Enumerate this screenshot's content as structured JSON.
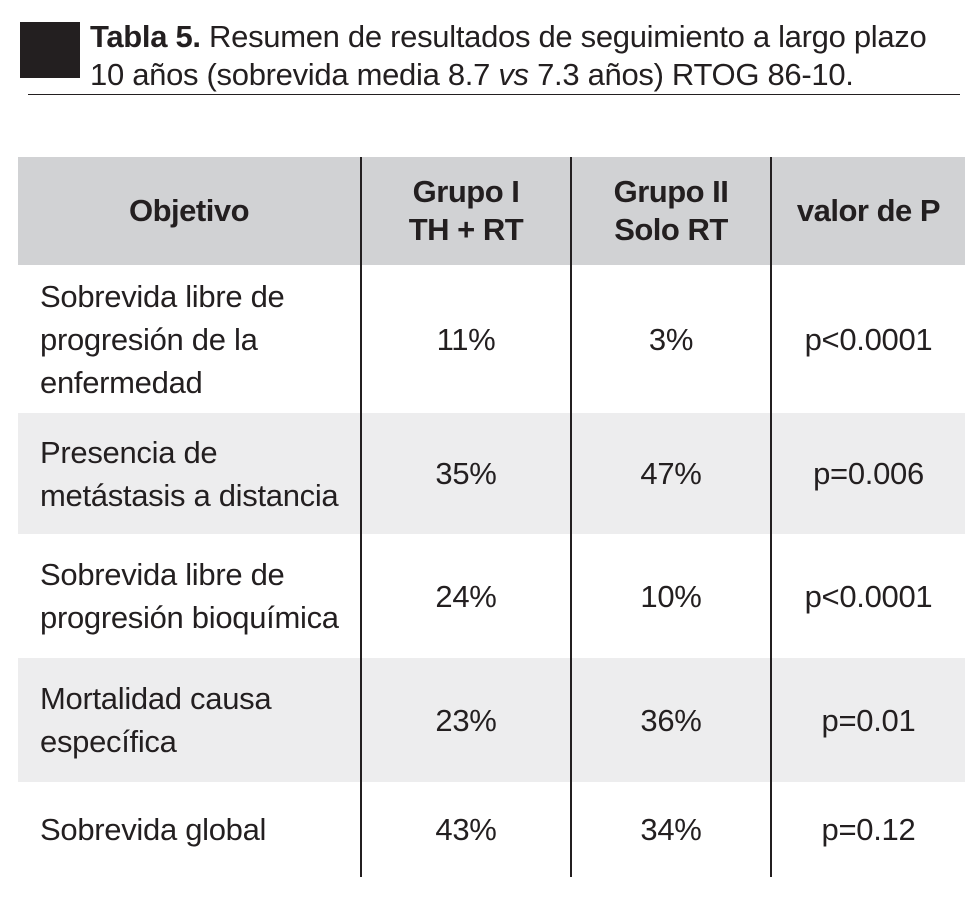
{
  "caption": {
    "label": "Tabla 5.",
    "text_line1": " Resumen de resultados de seguimiento a largo plazo",
    "text_line2_before": "10 años (sobrevida media 8.7 ",
    "text_line2_italic": "vs",
    "text_line2_after": " 7.3 años) RTOG 86-10."
  },
  "table": {
    "headers": [
      {
        "line1": "Objetivo",
        "line2": ""
      },
      {
        "line1": "Grupo I",
        "line2": "TH + RT"
      },
      {
        "line1": "Grupo II",
        "line2": "Solo RT"
      },
      {
        "line1": "valor de P",
        "line2": ""
      }
    ],
    "rows": [
      {
        "objetivo": [
          "Sobrevida libre de",
          "progresión de la",
          "enfermedad"
        ],
        "grupo1": "11%",
        "grupo2": "3%",
        "p": "p<0.0001"
      },
      {
        "objetivo": [
          "Presencia de",
          "metástasis a distancia"
        ],
        "grupo1": "35%",
        "grupo2": "47%",
        "p": "p=0.006"
      },
      {
        "objetivo": [
          "Sobrevida libre de",
          "progresión bioquímica"
        ],
        "grupo1": "24%",
        "grupo2": "10%",
        "p": "p<0.0001"
      },
      {
        "objetivo": [
          "Mortalidad causa",
          "específica"
        ],
        "grupo1": "23%",
        "grupo2": "36%",
        "p": "p=0.01"
      },
      {
        "objetivo": [
          "Sobrevida global"
        ],
        "grupo1": "43%",
        "grupo2": "34%",
        "p": "p=0.12"
      }
    ]
  }
}
